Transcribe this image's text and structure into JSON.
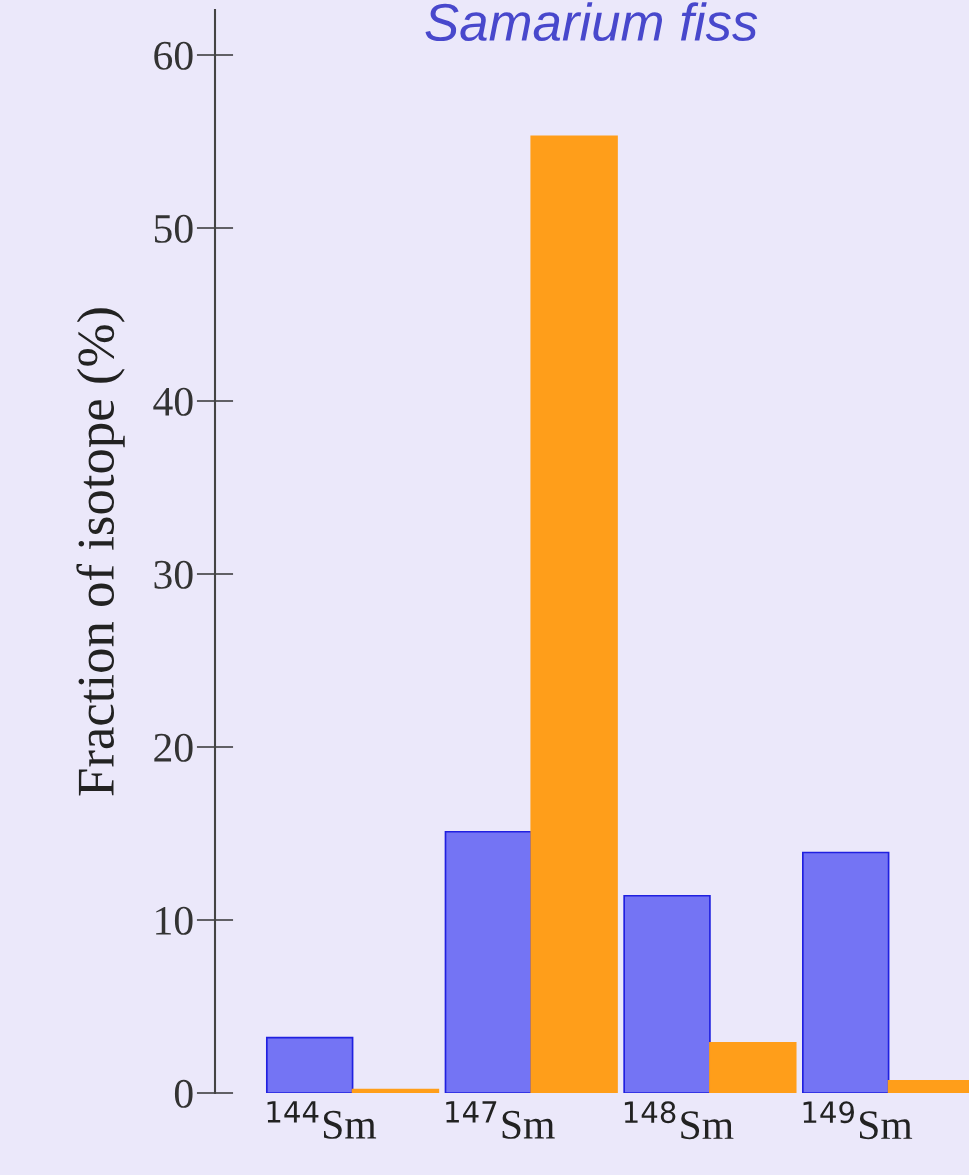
{
  "chart_data": {
    "type": "bar",
    "title": "Samarium fiss",
    "ylabel": "Fraction of isotope (%)",
    "categories": [
      "$^{144}$Sm",
      "$^{147}$Sm",
      "$^{148}$Sm",
      "$^{149}$Sm"
    ],
    "series": [
      {
        "color": "#7474f4",
        "values": [
          3.2,
          15.1,
          11.4,
          13.9
        ]
      },
      {
        "color": "#ff9e1a",
        "values": [
          0.2,
          55.3,
          2.9,
          0.7
        ]
      }
    ],
    "ylim": [
      0,
      62.6
    ],
    "yticks": [
      0,
      10,
      20,
      30,
      40,
      50,
      60
    ],
    "grid": false,
    "legend": false
  }
}
